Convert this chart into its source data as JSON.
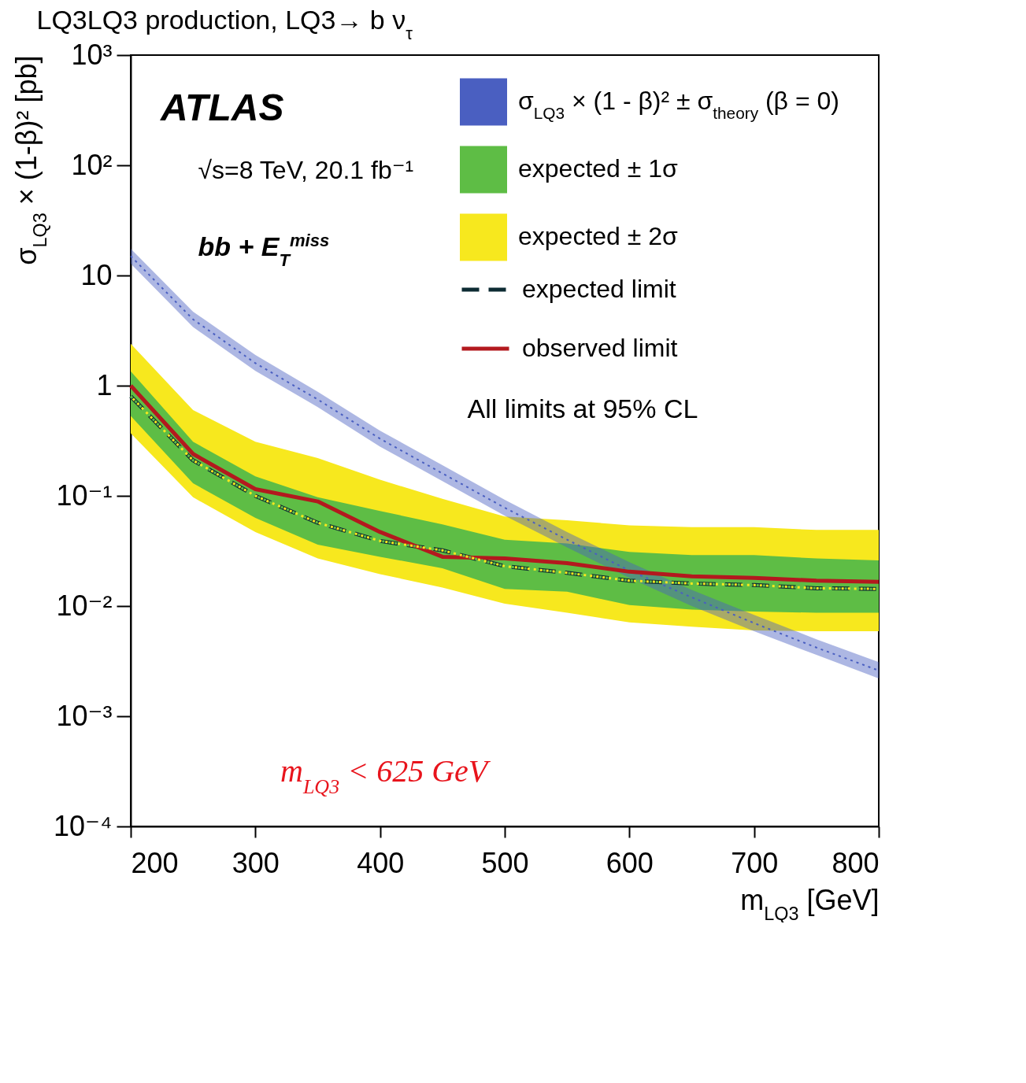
{
  "chart_data": {
    "type": "line",
    "title": "LQ3LQ3 production, LQ3→ b ν$_{τ}$",
    "xlabel": "m$_{LQ3}$ [GeV]",
    "ylabel": "σ$_{LQ3}$ × (1-β)² [pb]",
    "x": [
      200,
      250,
      300,
      350,
      400,
      450,
      500,
      550,
      600,
      650,
      700,
      750,
      800
    ],
    "xlim": [
      200,
      800
    ],
    "ylim": [
      0.0001,
      1000
    ],
    "xticks": [
      200,
      300,
      400,
      500,
      600,
      700,
      800
    ],
    "yticks": [
      {
        "value": 0.0001,
        "label": "10⁻⁴"
      },
      {
        "value": 0.001,
        "label": "10⁻³"
      },
      {
        "value": 0.01,
        "label": "10⁻²"
      },
      {
        "value": 0.1,
        "label": "10⁻¹"
      },
      1,
      10,
      {
        "value": 100,
        "label": "10²"
      },
      {
        "value": 1000,
        "label": "10³"
      }
    ],
    "log": "y",
    "grid": false,
    "legend": "top right",
    "annotations": [
      "ATLAS",
      "√s=8 TeV, 20.1 fb⁻¹",
      "bb + E$_{T}$$^{miss}$",
      "All limits at 95% CL",
      "m$_{LQ3}$ < 625 GeV"
    ],
    "series": [
      {
        "name": "σ$_{LQ3}$ × (1 - β)² ± σ$_{theory}$ (β = 0)",
        "type": "line",
        "color": "#4a5fc1",
        "line_style": "dotted",
        "values": [
          15,
          4.0,
          1.6,
          0.75,
          0.33,
          0.16,
          0.078,
          0.04,
          0.021,
          0.012,
          0.007,
          0.0042,
          0.0026
        ],
        "lower": [
          12.8,
          3.4,
          1.36,
          0.64,
          0.28,
          0.136,
          0.066,
          0.034,
          0.018,
          0.01,
          0.0059,
          0.0036,
          0.0022
        ],
        "upper": [
          17.5,
          4.7,
          1.9,
          0.88,
          0.39,
          0.19,
          0.092,
          0.047,
          0.025,
          0.014,
          0.0083,
          0.005,
          0.0031
        ]
      },
      {
        "name": "expected limit",
        "type": "line",
        "color": "#0d2b33",
        "line_style": "dashed",
        "values": [
          0.8,
          0.21,
          0.1,
          0.057,
          0.039,
          0.032,
          0.023,
          0.02,
          0.017,
          0.016,
          0.0155,
          0.0145,
          0.0143
        ]
      },
      {
        "name": "observed limit",
        "type": "line",
        "color": "#b3191e",
        "line_style": "solid",
        "values": [
          1.0,
          0.24,
          0.115,
          0.089,
          0.047,
          0.028,
          0.027,
          0.0245,
          0.0205,
          0.0186,
          0.018,
          0.017,
          0.0166
        ]
      },
      {
        "name": "expected ± 1σ",
        "type": "line",
        "color": "#5ebd45",
        "line_style": "dotted",
        "values": [
          0.8,
          0.21,
          0.1,
          0.057,
          0.039,
          0.032,
          0.023,
          0.02,
          0.017,
          0.016,
          0.0155,
          0.0145,
          0.0143
        ],
        "lower": [
          0.53,
          0.13,
          0.063,
          0.036,
          0.028,
          0.022,
          0.0143,
          0.0135,
          0.0102,
          0.0093,
          0.0089,
          0.0087,
          0.0087
        ],
        "upper": [
          1.35,
          0.31,
          0.15,
          0.097,
          0.073,
          0.055,
          0.04,
          0.037,
          0.031,
          0.029,
          0.029,
          0.027,
          0.026
        ]
      },
      {
        "name": "expected ± 2σ",
        "type": "line",
        "color": "#f7e81e",
        "line_style": "dotted",
        "values": [
          0.8,
          0.21,
          0.1,
          0.057,
          0.039,
          0.032,
          0.023,
          0.02,
          0.017,
          0.016,
          0.0155,
          0.0145,
          0.0143
        ],
        "lower": [
          0.37,
          0.097,
          0.047,
          0.027,
          0.0195,
          0.0147,
          0.0105,
          0.0087,
          0.0071,
          0.0065,
          0.006,
          0.0059,
          0.0059
        ],
        "upper": [
          2.4,
          0.6,
          0.31,
          0.22,
          0.14,
          0.094,
          0.065,
          0.06,
          0.054,
          0.052,
          0.052,
          0.049,
          0.049
        ]
      }
    ]
  }
}
